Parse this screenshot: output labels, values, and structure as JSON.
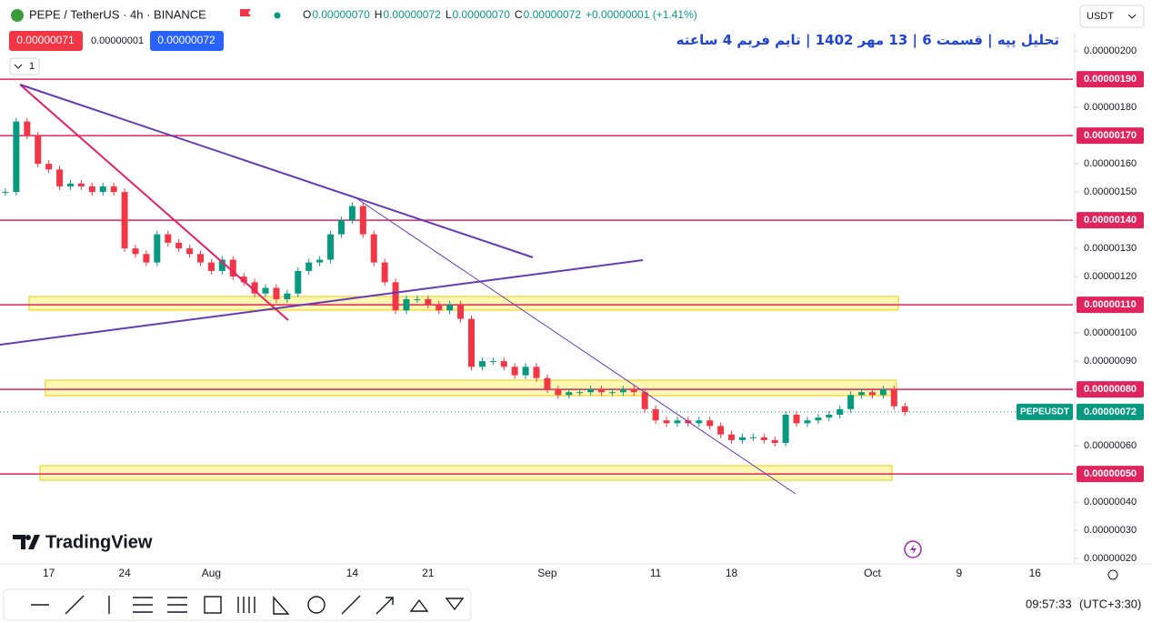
{
  "header": {
    "symbol": "PEPE / TetherUS · 4h · BINANCE",
    "ohlc": [
      {
        "key": "O",
        "value": "0.00000070"
      },
      {
        "key": "H",
        "value": "0.00000072"
      },
      {
        "key": "L",
        "value": "0.00000070"
      },
      {
        "key": "C",
        "value": "0.00000072"
      }
    ],
    "change": "+0.00000001 (+1.41%)",
    "sell": "0.00000071",
    "spread": "0.00000001",
    "buy": "0.00000072",
    "indicators": "1",
    "currency": "USDT"
  },
  "chart_data": {
    "type": "candlestick",
    "title": "تحلیل پپه | قسمت 6 | 13 مهر 1402 | تایم فریم 4 ساعته",
    "categories": [
      null,
      null,
      null,
      null,
      "17",
      null,
      null,
      null,
      null,
      null,
      null,
      "24",
      null,
      null,
      null,
      null,
      null,
      null,
      null,
      "Aug",
      null,
      null,
      null,
      null,
      null,
      null,
      null,
      null,
      null,
      null,
      null,
      null,
      "14",
      null,
      null,
      null,
      null,
      null,
      null,
      "21",
      null,
      null,
      null,
      null,
      null,
      null,
      null,
      null,
      null,
      null,
      "Sep",
      null,
      null,
      null,
      null,
      null,
      null,
      null,
      null,
      null,
      "11",
      null,
      null,
      null,
      null,
      null,
      null,
      "18",
      null,
      null,
      null,
      null,
      null,
      null,
      null,
      null,
      null,
      null,
      null,
      null,
      "Oct",
      null,
      null,
      null,
      null,
      null,
      null,
      null,
      "9",
      null,
      null,
      null,
      null,
      null,
      null,
      "16",
      null,
      null,
      null
    ],
    "values": [
      1.5e-06,
      1.75e-06,
      1.7e-06,
      1.6e-06,
      1.58e-06,
      1.52e-06,
      1.53e-06,
      1.52e-06,
      1.5e-06,
      1.52e-06,
      1.5e-06,
      1.3e-06,
      1.28e-06,
      1.25e-06,
      1.35e-06,
      1.32e-06,
      1.3e-06,
      1.28e-06,
      1.25e-06,
      1.22e-06,
      1.26e-06,
      1.2e-06,
      1.18e-06,
      1.14e-06,
      1.16e-06,
      1.12e-06,
      1.14e-06,
      1.22e-06,
      1.25e-06,
      1.26e-06,
      1.35e-06,
      1.4e-06,
      1.45e-06,
      1.35e-06,
      1.25e-06,
      1.18e-06,
      1.08e-06,
      1.12e-06,
      1.12e-06,
      1.1e-06,
      1.08e-06,
      1.1e-06,
      1.05e-06,
      8.8e-07,
      9e-07,
      9e-07,
      8.8e-07,
      8.5e-07,
      8.8e-07,
      8.4e-07,
      8e-07,
      7.8e-07,
      7.9e-07,
      7.9e-07,
      8e-07,
      7.9e-07,
      7.9e-07,
      8e-07,
      7.9e-07,
      7.3e-07,
      6.9e-07,
      6.8e-07,
      6.9e-07,
      6.8e-07,
      6.9e-07,
      6.7e-07,
      6.4e-07,
      6.2e-07,
      6.3e-07,
      6.3e-07,
      6.2e-07,
      6.1e-07,
      7.1e-07,
      6.8e-07,
      6.9e-07,
      7e-07,
      7.1e-07,
      7.3e-07,
      7.8e-07,
      7.9e-07,
      7.8e-07,
      8e-07,
      7.4e-07,
      7.2e-07,
      null,
      null,
      null,
      null,
      null,
      null,
      null,
      null,
      null,
      null,
      null,
      null,
      null,
      null,
      null
    ],
    "up_color": "#089981",
    "down_color": "#f23645",
    "ylim": [
      1.81e-07,
      2.052e-06
    ],
    "yticks": [
      {
        "value": 2e-06,
        "label": "0.00000200"
      },
      {
        "value": 1.9e-06,
        "label": "0.00000190"
      },
      {
        "value": 1.8e-06,
        "label": "0.00000180"
      },
      {
        "value": 1.7e-06,
        "label": "0.00000170"
      },
      {
        "value": 1.6e-06,
        "label": "0.00000160"
      },
      {
        "value": 1.5e-06,
        "label": "0.00000150"
      },
      {
        "value": 1.4e-06,
        "label": "0.00000140"
      },
      {
        "value": 1.3e-06,
        "label": "0.00000130"
      },
      {
        "value": 1.2e-06,
        "label": "0.00000120"
      },
      {
        "value": 1.1e-06,
        "label": "0.00000110"
      },
      {
        "value": 1e-06,
        "label": "0.00000100"
      },
      {
        "value": 9e-07,
        "label": "0.00000090"
      },
      {
        "value": 8e-07,
        "label": "0.00000080"
      },
      {
        "value": 7e-07,
        "label": "0.00000070"
      },
      {
        "value": 6e-07,
        "label": "0.00000060"
      },
      {
        "value": 5e-07,
        "label": "0.00000050"
      },
      {
        "value": 4e-07,
        "label": "0.00000040"
      },
      {
        "value": 3e-07,
        "label": "0.00000030"
      },
      {
        "value": 2e-07,
        "label": "0.00000020"
      }
    ],
    "levels": [
      {
        "value": 1.9e-06,
        "label": "0.00000190"
      },
      {
        "value": 1.7e-06,
        "label": "0.00000170"
      },
      {
        "value": 1.4e-06,
        "label": "0.00000140"
      },
      {
        "value": 1.1e-06,
        "label": "0.00000110"
      },
      {
        "value": 8e-07,
        "label": "0.00000080"
      },
      {
        "value": 5e-07,
        "label": "0.00000050"
      }
    ],
    "level_color": "#e0245e",
    "last_price": {
      "value": 7.2e-07,
      "label": "0.00000072"
    },
    "last_symbol": "PEPEUSDT",
    "grid": false
  },
  "footer": {
    "logo": "TradingView",
    "time": "09:57:33",
    "timezone": "(UTC+3:30)"
  }
}
